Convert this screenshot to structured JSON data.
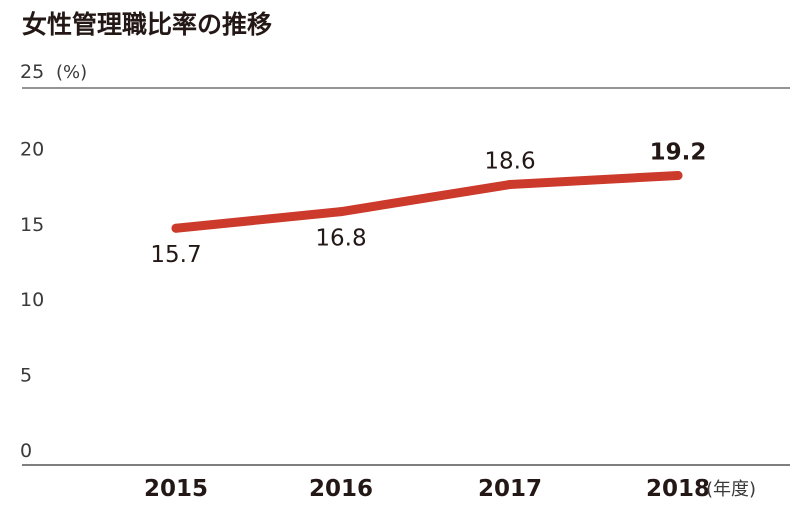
{
  "title": "女性管理職比率の推移",
  "y_unit": "(%)",
  "x_unit": "(年度)",
  "colors": {
    "line": "#cc3a2c",
    "axis": "#555555",
    "text": "#231815"
  },
  "chart_data": {
    "type": "line",
    "title": "女性管理職比率の推移",
    "x": [
      "2015",
      "2016",
      "2017",
      "2018"
    ],
    "series": [
      {
        "values": [
          15.7,
          16.8,
          18.6,
          19.2
        ],
        "labels": [
          "15.7",
          "16.8",
          "18.6",
          "19.2"
        ]
      }
    ],
    "yticks": [
      "0",
      "5",
      "10",
      "15",
      "20",
      "25"
    ],
    "ylabel": "(%)",
    "xlabel": "(年度)",
    "ylim": [
      0,
      25
    ],
    "grid": false
  }
}
